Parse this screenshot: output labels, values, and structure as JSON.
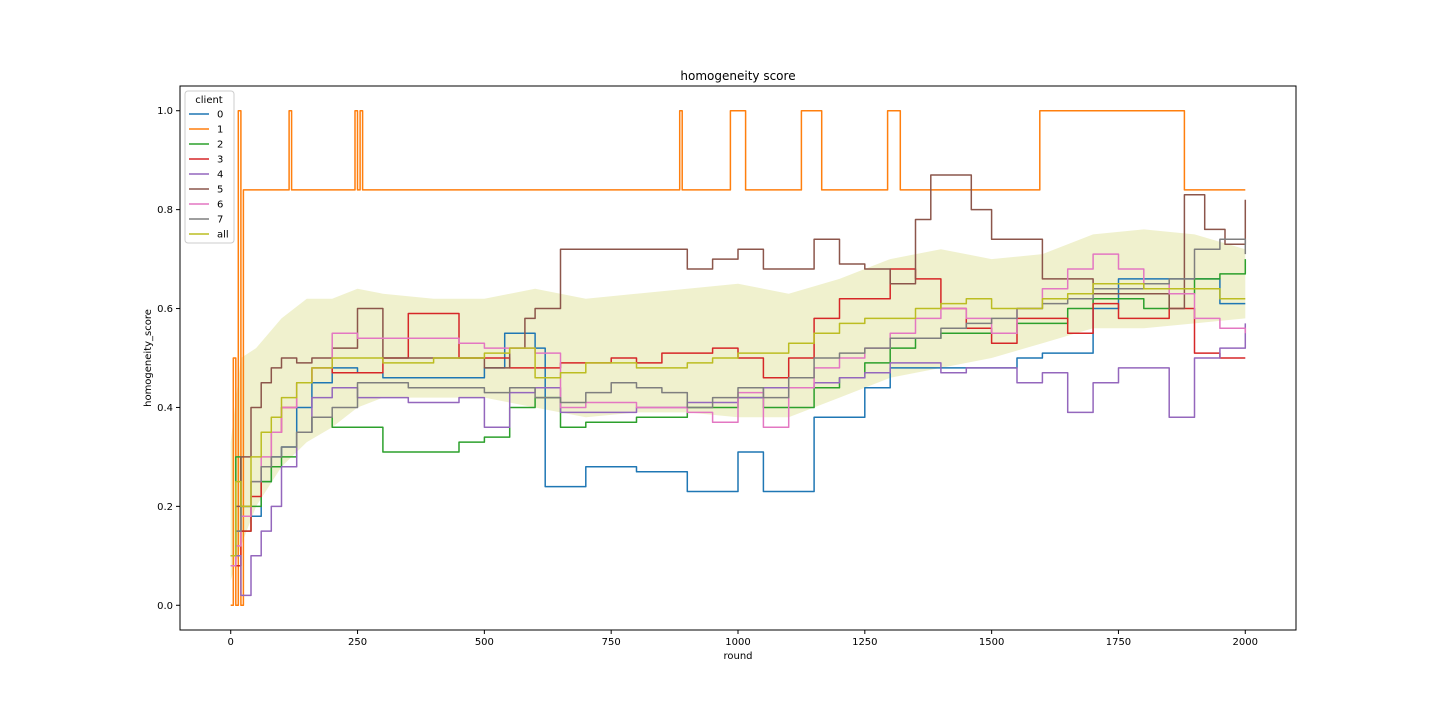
{
  "chart_data": {
    "type": "line",
    "title": "homogeneity score",
    "xlabel": "round",
    "ylabel": "homogeneity_score",
    "xlim": [
      -100,
      2100
    ],
    "ylim": [
      -0.05,
      1.05
    ],
    "xticks": [
      0,
      250,
      500,
      750,
      1000,
      1250,
      1500,
      1750,
      2000
    ],
    "yticks": [
      0.0,
      0.2,
      0.4,
      0.6,
      0.8,
      1.0
    ],
    "xtick_labels": [
      "0",
      "250",
      "500",
      "750",
      "1000",
      "1250",
      "1500",
      "1750",
      "2000"
    ],
    "ytick_labels": [
      "0.0",
      "0.2",
      "0.4",
      "0.6",
      "0.8",
      "1.0"
    ],
    "grid": false,
    "legend": {
      "title": "client",
      "position": "top-left"
    },
    "band": {
      "series": "all",
      "color": "#bcbd22",
      "opacity": 0.22,
      "x": [
        0,
        20,
        50,
        100,
        150,
        200,
        250,
        300,
        400,
        500,
        600,
        700,
        800,
        900,
        1000,
        1100,
        1200,
        1300,
        1400,
        1500,
        1600,
        1700,
        1800,
        1900,
        2000
      ],
      "upper": [
        0.33,
        0.5,
        0.52,
        0.58,
        0.62,
        0.62,
        0.64,
        0.63,
        0.62,
        0.62,
        0.64,
        0.62,
        0.63,
        0.64,
        0.65,
        0.63,
        0.66,
        0.7,
        0.72,
        0.7,
        0.71,
        0.75,
        0.76,
        0.75,
        0.72
      ],
      "lower": [
        0.05,
        0.12,
        0.2,
        0.28,
        0.33,
        0.36,
        0.4,
        0.42,
        0.42,
        0.42,
        0.4,
        0.38,
        0.39,
        0.39,
        0.38,
        0.38,
        0.42,
        0.46,
        0.48,
        0.5,
        0.53,
        0.56,
        0.56,
        0.57,
        0.58
      ]
    },
    "series": [
      {
        "name": "0",
        "color": "#1f77b4",
        "x": [
          0,
          10,
          20,
          40,
          60,
          80,
          100,
          130,
          160,
          200,
          250,
          300,
          400,
          500,
          540,
          600,
          620,
          650,
          700,
          750,
          800,
          850,
          900,
          950,
          1000,
          1050,
          1100,
          1150,
          1200,
          1250,
          1300,
          1350,
          1400,
          1450,
          1500,
          1550,
          1600,
          1650,
          1700,
          1750,
          1800,
          1850,
          1900,
          1950,
          2000
        ],
        "y": [
          0.1,
          0.15,
          0.2,
          0.18,
          0.25,
          0.3,
          0.32,
          0.4,
          0.45,
          0.48,
          0.47,
          0.46,
          0.46,
          0.48,
          0.55,
          0.52,
          0.24,
          0.24,
          0.28,
          0.28,
          0.27,
          0.27,
          0.23,
          0.23,
          0.31,
          0.23,
          0.23,
          0.38,
          0.38,
          0.44,
          0.48,
          0.48,
          0.48,
          0.48,
          0.48,
          0.5,
          0.51,
          0.51,
          0.6,
          0.66,
          0.66,
          0.66,
          0.66,
          0.61,
          0.61
        ]
      },
      {
        "name": "1",
        "color": "#ff7f0e",
        "x": [
          0,
          5,
          10,
          15,
          20,
          25,
          30,
          60,
          110,
          115,
          120,
          125,
          130,
          240,
          245,
          250,
          255,
          260,
          870,
          885,
          890,
          980,
          985,
          1010,
          1015,
          1120,
          1125,
          1160,
          1165,
          1290,
          1295,
          1315,
          1320,
          1590,
          1595,
          1875,
          1880,
          2000
        ],
        "y": [
          0.0,
          0.5,
          0.0,
          1.0,
          0.0,
          0.84,
          0.84,
          0.84,
          0.84,
          1.0,
          0.84,
          0.84,
          0.84,
          0.84,
          1.0,
          0.84,
          1.0,
          0.84,
          0.84,
          1.0,
          0.84,
          0.84,
          1.0,
          1.0,
          0.84,
          0.84,
          1.0,
          1.0,
          0.84,
          0.84,
          1.0,
          1.0,
          0.84,
          0.84,
          1.0,
          1.0,
          0.84,
          0.84
        ]
      },
      {
        "name": "2",
        "color": "#2ca02c",
        "x": [
          0,
          10,
          20,
          40,
          60,
          80,
          100,
          130,
          160,
          200,
          250,
          300,
          350,
          400,
          450,
          500,
          550,
          600,
          650,
          700,
          750,
          800,
          850,
          900,
          950,
          1000,
          1050,
          1100,
          1150,
          1200,
          1250,
          1300,
          1350,
          1400,
          1450,
          1500,
          1550,
          1600,
          1650,
          1700,
          1750,
          1800,
          1850,
          1900,
          1950,
          2000
        ],
        "y": [
          0.1,
          0.3,
          0.15,
          0.2,
          0.25,
          0.28,
          0.3,
          0.35,
          0.38,
          0.36,
          0.36,
          0.31,
          0.31,
          0.31,
          0.33,
          0.34,
          0.4,
          0.42,
          0.36,
          0.37,
          0.37,
          0.38,
          0.38,
          0.4,
          0.4,
          0.42,
          0.4,
          0.4,
          0.44,
          0.46,
          0.49,
          0.52,
          0.54,
          0.55,
          0.55,
          0.55,
          0.57,
          0.57,
          0.6,
          0.62,
          0.62,
          0.6,
          0.63,
          0.66,
          0.67,
          0.7
        ]
      },
      {
        "name": "3",
        "color": "#d62728",
        "x": [
          0,
          10,
          20,
          40,
          60,
          80,
          100,
          130,
          160,
          200,
          250,
          300,
          350,
          400,
          450,
          500,
          550,
          600,
          650,
          700,
          750,
          800,
          850,
          900,
          950,
          1000,
          1050,
          1100,
          1150,
          1200,
          1250,
          1300,
          1350,
          1400,
          1450,
          1500,
          1550,
          1600,
          1650,
          1700,
          1750,
          1800,
          1850,
          1900,
          1950,
          2000
        ],
        "y": [
          0.1,
          0.08,
          0.15,
          0.22,
          0.28,
          0.35,
          0.4,
          0.45,
          0.48,
          0.47,
          0.47,
          0.5,
          0.59,
          0.59,
          0.5,
          0.5,
          0.48,
          0.48,
          0.49,
          0.49,
          0.5,
          0.49,
          0.51,
          0.51,
          0.52,
          0.5,
          0.46,
          0.5,
          0.58,
          0.62,
          0.62,
          0.68,
          0.66,
          0.6,
          0.56,
          0.53,
          0.58,
          0.58,
          0.55,
          0.61,
          0.58,
          0.58,
          0.6,
          0.51,
          0.5,
          0.5
        ]
      },
      {
        "name": "4",
        "color": "#9467bd",
        "x": [
          0,
          10,
          20,
          40,
          60,
          80,
          100,
          130,
          160,
          200,
          250,
          300,
          350,
          400,
          450,
          500,
          550,
          600,
          650,
          700,
          750,
          800,
          850,
          900,
          950,
          1000,
          1050,
          1100,
          1150,
          1200,
          1250,
          1300,
          1350,
          1400,
          1450,
          1500,
          1550,
          1600,
          1650,
          1700,
          1750,
          1800,
          1850,
          1900,
          1950,
          2000
        ],
        "y": [
          0.08,
          0.1,
          0.02,
          0.1,
          0.15,
          0.2,
          0.28,
          0.35,
          0.42,
          0.44,
          0.42,
          0.42,
          0.41,
          0.41,
          0.42,
          0.36,
          0.43,
          0.44,
          0.39,
          0.39,
          0.39,
          0.4,
          0.4,
          0.41,
          0.41,
          0.42,
          0.44,
          0.44,
          0.45,
          0.46,
          0.47,
          0.49,
          0.49,
          0.47,
          0.48,
          0.48,
          0.45,
          0.47,
          0.39,
          0.45,
          0.48,
          0.48,
          0.38,
          0.5,
          0.52,
          0.57
        ]
      },
      {
        "name": "5",
        "color": "#8c564b",
        "x": [
          0,
          10,
          20,
          40,
          60,
          80,
          100,
          130,
          160,
          200,
          250,
          270,
          300,
          400,
          500,
          550,
          580,
          600,
          650,
          700,
          750,
          800,
          850,
          900,
          950,
          1000,
          1050,
          1100,
          1150,
          1200,
          1250,
          1300,
          1350,
          1380,
          1420,
          1460,
          1500,
          1550,
          1600,
          1650,
          1700,
          1750,
          1800,
          1850,
          1880,
          1920,
          1960,
          2000
        ],
        "y": [
          0.1,
          0.2,
          0.3,
          0.4,
          0.45,
          0.48,
          0.5,
          0.49,
          0.5,
          0.52,
          0.6,
          0.6,
          0.5,
          0.5,
          0.48,
          0.52,
          0.58,
          0.6,
          0.72,
          0.72,
          0.72,
          0.72,
          0.72,
          0.68,
          0.7,
          0.72,
          0.68,
          0.68,
          0.74,
          0.69,
          0.68,
          0.65,
          0.78,
          0.87,
          0.87,
          0.8,
          0.74,
          0.74,
          0.66,
          0.66,
          0.63,
          0.63,
          0.63,
          0.6,
          0.83,
          0.76,
          0.73,
          0.82
        ]
      },
      {
        "name": "6",
        "color": "#e377c2",
        "x": [
          0,
          10,
          20,
          40,
          60,
          80,
          100,
          130,
          160,
          200,
          250,
          300,
          350,
          400,
          450,
          500,
          550,
          600,
          650,
          700,
          750,
          800,
          850,
          900,
          950,
          1000,
          1050,
          1100,
          1150,
          1200,
          1250,
          1300,
          1350,
          1400,
          1450,
          1500,
          1550,
          1600,
          1650,
          1700,
          1750,
          1800,
          1850,
          1900,
          1950,
          2000
        ],
        "y": [
          0.08,
          0.12,
          0.18,
          0.25,
          0.3,
          0.35,
          0.4,
          0.45,
          0.48,
          0.55,
          0.54,
          0.54,
          0.54,
          0.54,
          0.53,
          0.52,
          0.52,
          0.51,
          0.4,
          0.41,
          0.41,
          0.4,
          0.4,
          0.39,
          0.37,
          0.43,
          0.36,
          0.44,
          0.48,
          0.5,
          0.52,
          0.55,
          0.58,
          0.6,
          0.58,
          0.55,
          0.6,
          0.64,
          0.68,
          0.71,
          0.68,
          0.65,
          0.63,
          0.58,
          0.56,
          0.55
        ]
      },
      {
        "name": "7",
        "color": "#7f7f7f",
        "x": [
          0,
          10,
          20,
          40,
          60,
          80,
          100,
          130,
          160,
          200,
          250,
          300,
          350,
          400,
          450,
          500,
          550,
          600,
          650,
          700,
          750,
          800,
          850,
          900,
          950,
          1000,
          1050,
          1100,
          1150,
          1200,
          1250,
          1300,
          1350,
          1400,
          1450,
          1500,
          1550,
          1600,
          1650,
          1700,
          1750,
          1800,
          1850,
          1900,
          1950,
          2000
        ],
        "y": [
          0.1,
          0.15,
          0.2,
          0.25,
          0.28,
          0.3,
          0.32,
          0.35,
          0.38,
          0.4,
          0.45,
          0.45,
          0.44,
          0.44,
          0.44,
          0.43,
          0.44,
          0.42,
          0.41,
          0.43,
          0.45,
          0.44,
          0.43,
          0.4,
          0.42,
          0.44,
          0.42,
          0.46,
          0.5,
          0.51,
          0.52,
          0.54,
          0.54,
          0.56,
          0.57,
          0.58,
          0.6,
          0.61,
          0.62,
          0.64,
          0.64,
          0.65,
          0.66,
          0.72,
          0.74,
          0.71
        ]
      },
      {
        "name": "all",
        "color": "#bcbd22",
        "x": [
          0,
          10,
          20,
          40,
          60,
          80,
          100,
          130,
          160,
          200,
          250,
          300,
          350,
          400,
          450,
          500,
          550,
          600,
          650,
          700,
          750,
          800,
          850,
          900,
          950,
          1000,
          1050,
          1100,
          1150,
          1200,
          1250,
          1300,
          1350,
          1400,
          1450,
          1500,
          1550,
          1600,
          1650,
          1700,
          1750,
          1800,
          1850,
          1900,
          1950,
          2000
        ],
        "y": [
          0.1,
          0.25,
          0.2,
          0.3,
          0.35,
          0.38,
          0.42,
          0.45,
          0.48,
          0.5,
          0.5,
          0.49,
          0.49,
          0.5,
          0.5,
          0.51,
          0.52,
          0.46,
          0.47,
          0.49,
          0.49,
          0.48,
          0.48,
          0.49,
          0.5,
          0.51,
          0.51,
          0.53,
          0.55,
          0.57,
          0.58,
          0.58,
          0.6,
          0.61,
          0.62,
          0.6,
          0.6,
          0.62,
          0.63,
          0.65,
          0.65,
          0.64,
          0.64,
          0.64,
          0.62,
          0.62
        ]
      }
    ]
  }
}
